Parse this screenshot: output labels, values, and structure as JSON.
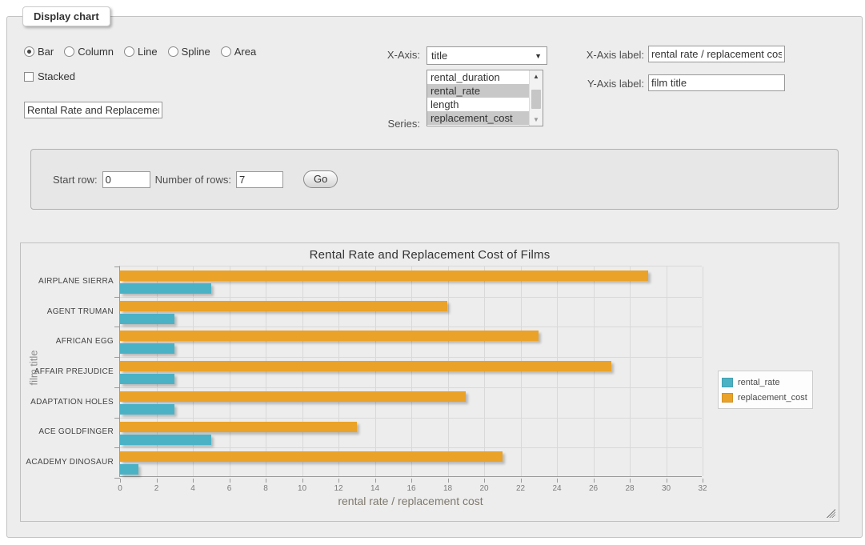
{
  "panel": {
    "legend_title": "Display chart",
    "chart_types": [
      {
        "label": "Bar",
        "checked": true
      },
      {
        "label": "Column",
        "checked": false
      },
      {
        "label": "Line",
        "checked": false
      },
      {
        "label": "Spline",
        "checked": false
      },
      {
        "label": "Area",
        "checked": false
      }
    ],
    "stacked_label": "Stacked",
    "title_value": "Rental Rate and Replacement Cost of Films",
    "x_axis_label": "X-Axis:",
    "x_axis_selected": "title",
    "series_label": "Series:",
    "series_options": [
      {
        "label": "rental_duration",
        "selected": false
      },
      {
        "label": "rental_rate",
        "selected": true
      },
      {
        "label": "length",
        "selected": false
      },
      {
        "label": "replacement_cost",
        "selected": true
      }
    ],
    "x_axis_label_field": {
      "label": "X-Axis label:",
      "value": "rental rate / replacement cost"
    },
    "y_axis_label_field": {
      "label": "Y-Axis label:",
      "value": "film title"
    }
  },
  "row_controls": {
    "start_row_label": "Start row:",
    "start_row_value": "0",
    "num_rows_label": "Number of rows:",
    "num_rows_value": "7",
    "go_label": "Go"
  },
  "chart_data": {
    "type": "bar",
    "orientation": "horizontal",
    "title": "Rental Rate and Replacement Cost of Films",
    "xlabel": "rental rate / replacement cost",
    "ylabel": "film title",
    "categories": [
      "AIRPLANE SIERRA",
      "AGENT TRUMAN",
      "AFRICAN EGG",
      "AFFAIR PREJUDICE",
      "ADAPTATION HOLES",
      "ACE GOLDFINGER",
      "ACADEMY DINOSAUR"
    ],
    "series": [
      {
        "name": "rental_rate",
        "color": "#4bb2c5",
        "values": [
          4.99,
          2.99,
          2.99,
          2.99,
          2.99,
          4.99,
          0.99
        ]
      },
      {
        "name": "replacement_cost",
        "color": "#EAA228",
        "values": [
          28.99,
          17.99,
          22.99,
          26.99,
          18.99,
          12.99,
          20.99
        ]
      }
    ],
    "xlim": [
      0,
      32
    ],
    "xticks": [
      0,
      2,
      4,
      6,
      8,
      10,
      12,
      14,
      16,
      18,
      20,
      22,
      24,
      26,
      28,
      30,
      32
    ],
    "grid": true,
    "legend_position": "right",
    "bar_draw_order_top_to_bottom": [
      "replacement_cost",
      "rental_rate"
    ]
  }
}
